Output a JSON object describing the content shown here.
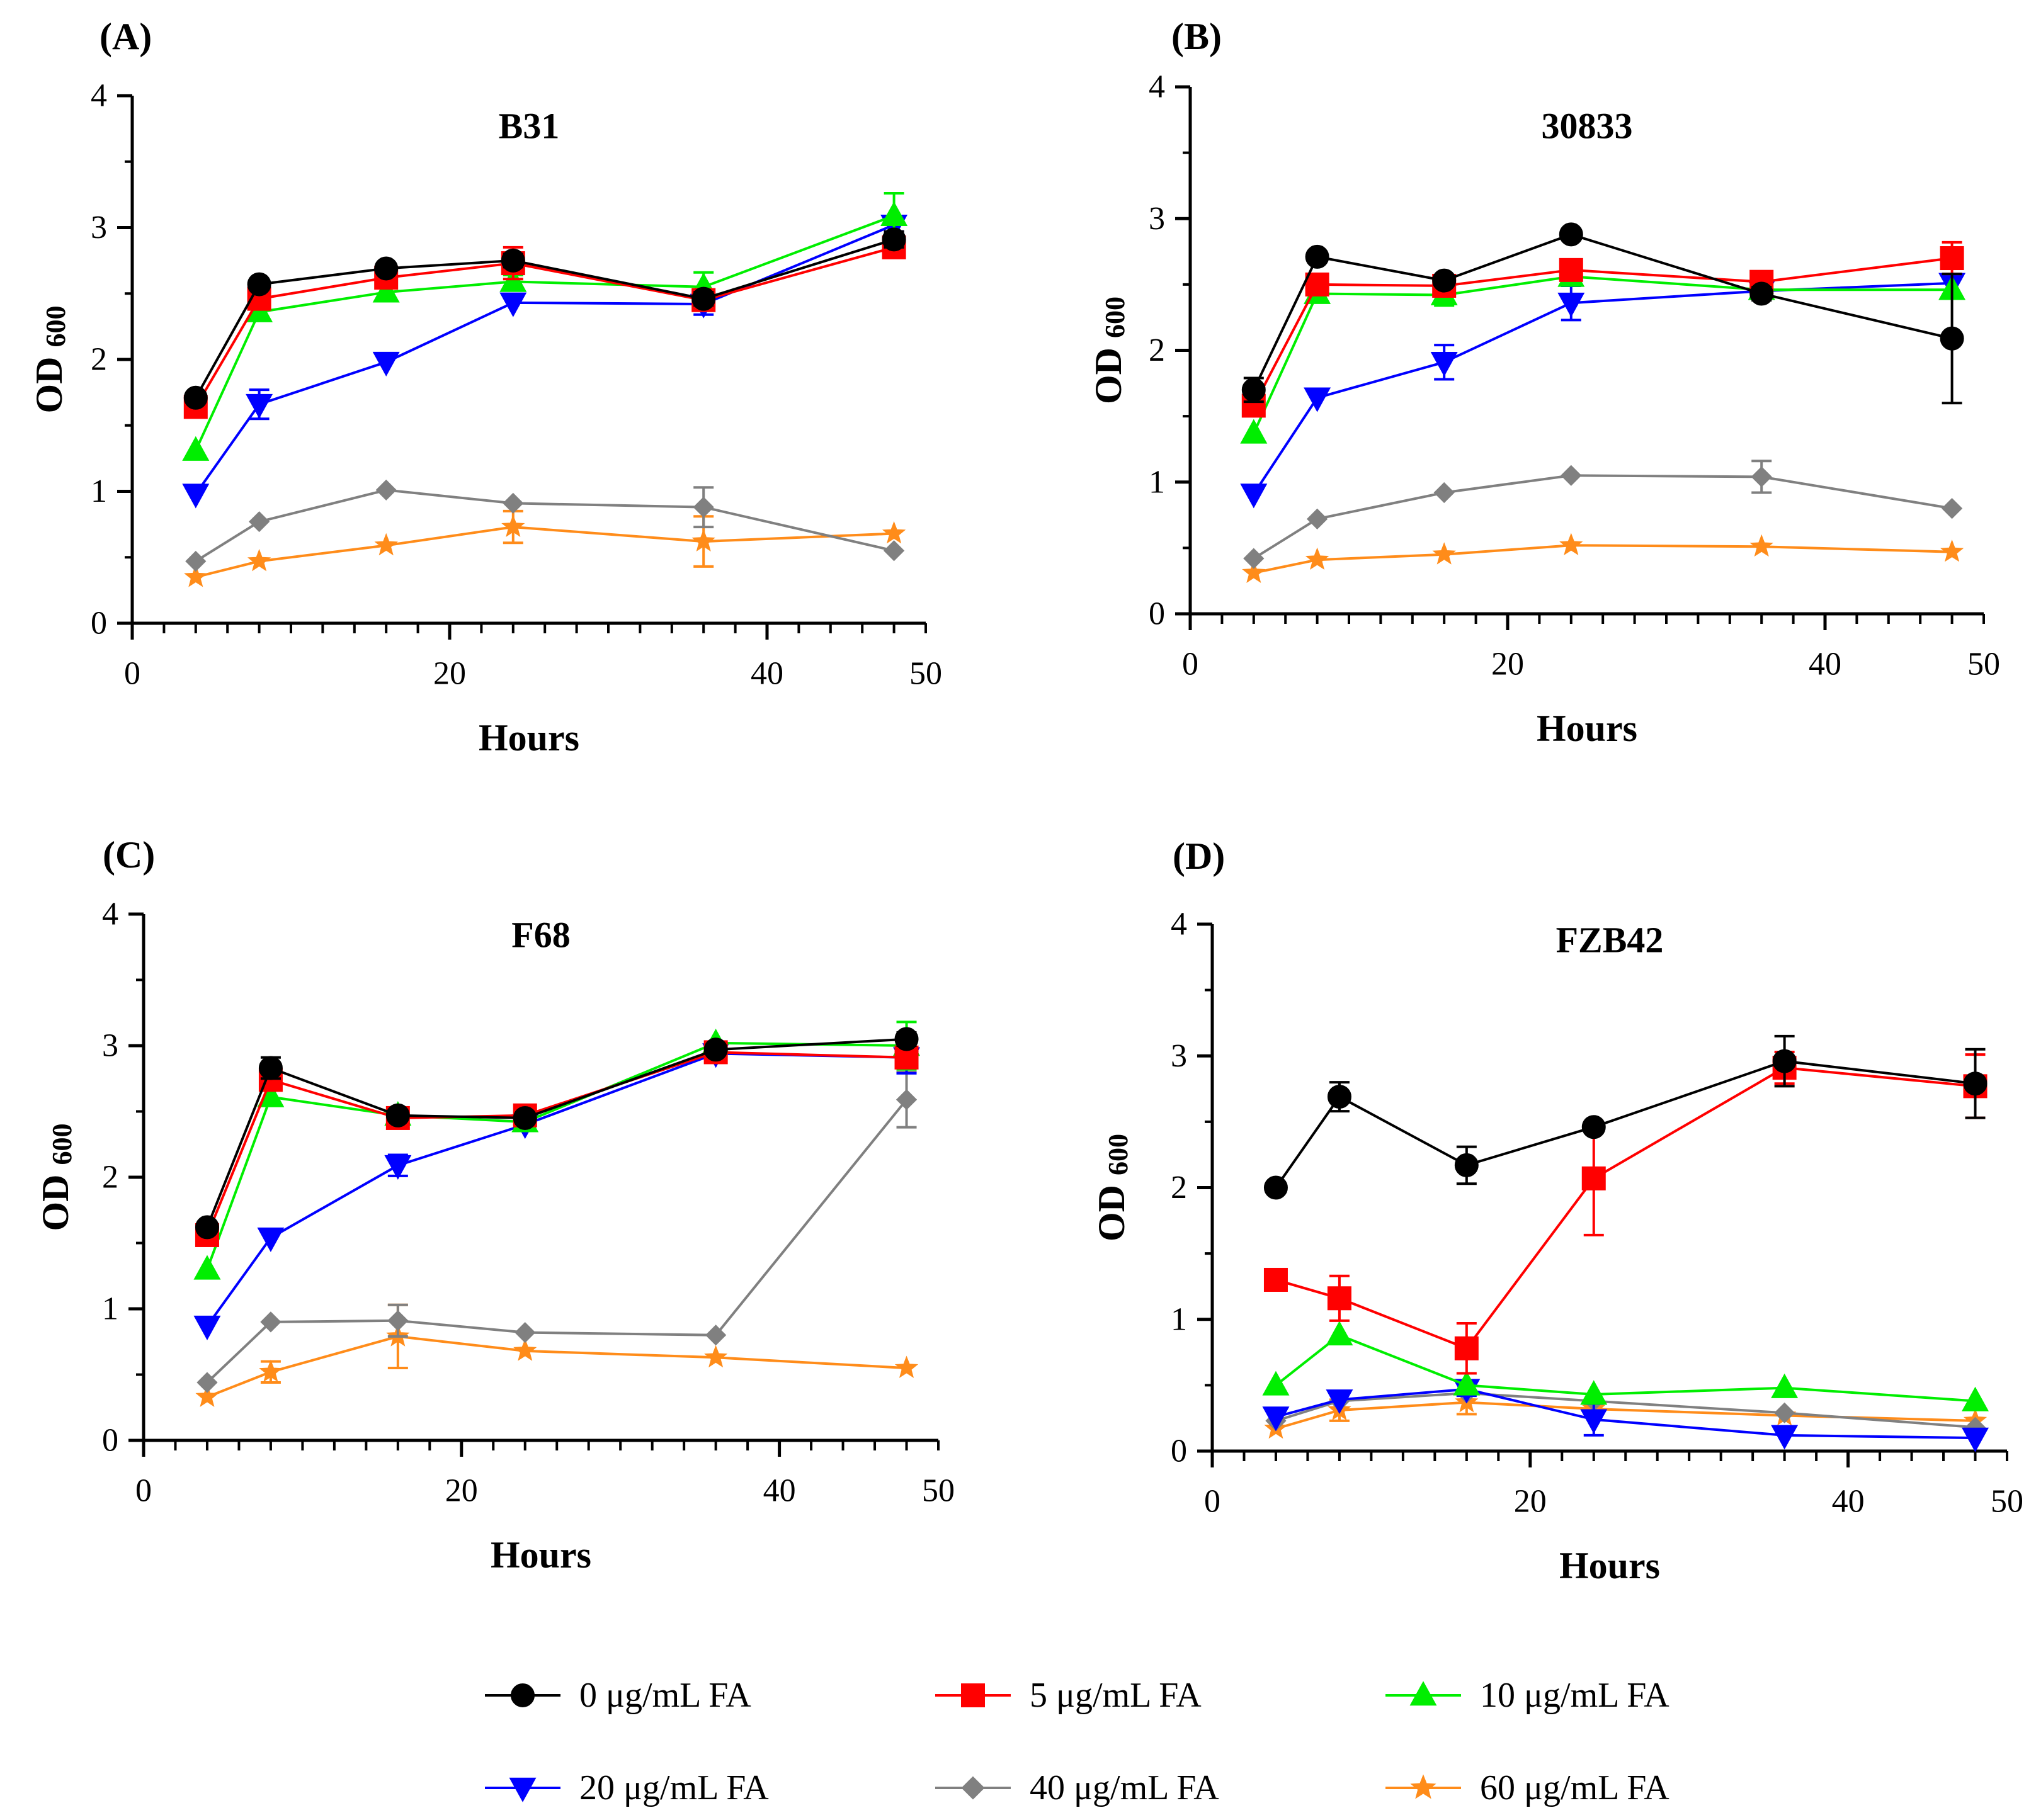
{
  "figure": {
    "legend": [
      {
        "label": "0 μg/mL FA",
        "color": "#000000",
        "marker": "circle"
      },
      {
        "label": "5 μg/mL FA",
        "color": "#ff0000",
        "marker": "square"
      },
      {
        "label": "10 μg/mL FA",
        "color": "#00ee00",
        "marker": "triangle-up"
      },
      {
        "label": "20 μg/mL FA",
        "color": "#0000ff",
        "marker": "triangle-down"
      },
      {
        "label": "40 μg/mL FA",
        "color": "#808080",
        "marker": "diamond"
      },
      {
        "label": "60 μg/mL FA",
        "color": "#ff8c1a",
        "marker": "star"
      }
    ]
  },
  "chart_data": [
    {
      "panel": "(A)",
      "type": "line",
      "title": "B31",
      "xlabel": "Hours",
      "ylabel_main": "OD",
      "ylabel_sub": "600",
      "xlim": [
        0,
        50
      ],
      "ylim": [
        0,
        4
      ],
      "xticks": [
        0,
        20,
        40,
        50
      ],
      "yticks": [
        0,
        1,
        2,
        3,
        4
      ],
      "x": [
        4,
        8,
        16,
        24,
        36,
        48
      ],
      "series": [
        {
          "name": "0 μg/mL FA",
          "values": [
            1.71,
            2.57,
            2.69,
            2.75,
            2.46,
            2.91
          ],
          "errors": [
            0.03,
            0.03,
            0.03,
            0.05,
            0.05,
            0.06
          ]
        },
        {
          "name": "5 μg/mL FA",
          "values": [
            1.64,
            2.46,
            2.62,
            2.73,
            2.45,
            2.85
          ],
          "errors": [
            0.03,
            0.03,
            0.04,
            0.12,
            0.04,
            0.05
          ]
        },
        {
          "name": "10 μg/mL FA",
          "values": [
            1.31,
            2.36,
            2.51,
            2.59,
            2.55,
            3.09
          ],
          "errors": [
            0.03,
            0.04,
            0.04,
            0.05,
            0.11,
            0.17
          ]
        },
        {
          "name": "20 μg/mL FA",
          "values": [
            0.98,
            1.66,
            1.98,
            2.43,
            2.42,
            3.02
          ],
          "errors": [
            0.03,
            0.11,
            0.03,
            0.04,
            0.08,
            0.05
          ]
        },
        {
          "name": "40 μg/mL FA",
          "values": [
            0.47,
            0.77,
            1.01,
            0.91,
            0.88,
            0.55
          ],
          "errors": [
            0.02,
            0.03,
            0.03,
            0.03,
            0.15,
            0.02
          ]
        },
        {
          "name": "60 μg/mL FA",
          "values": [
            0.35,
            0.47,
            0.59,
            0.73,
            0.62,
            0.68
          ],
          "errors": [
            0.02,
            0.02,
            0.03,
            0.12,
            0.19,
            0.03
          ]
        }
      ]
    },
    {
      "panel": "(B)",
      "type": "line",
      "title": "30833",
      "xlabel": "Hours",
      "ylabel_main": "OD",
      "ylabel_sub": "600",
      "xlim": [
        0,
        50
      ],
      "ylim": [
        0,
        4
      ],
      "xticks": [
        0,
        20,
        40,
        50
      ],
      "yticks": [
        0,
        1,
        2,
        3,
        4
      ],
      "x": [
        4,
        8,
        16,
        24,
        36,
        48
      ],
      "series": [
        {
          "name": "0 μg/mL FA",
          "values": [
            1.7,
            2.71,
            2.53,
            2.88,
            2.43,
            2.09
          ],
          "errors": [
            0.09,
            0.03,
            0.04,
            0.03,
            0.05,
            0.49
          ]
        },
        {
          "name": "5 μg/mL FA",
          "values": [
            1.58,
            2.5,
            2.49,
            2.61,
            2.52,
            2.7
          ],
          "errors": [
            0.07,
            0.05,
            0.04,
            0.04,
            0.05,
            0.12
          ]
        },
        {
          "name": "10 μg/mL FA",
          "values": [
            1.37,
            2.43,
            2.42,
            2.56,
            2.46,
            2.46
          ],
          "errors": [
            0.03,
            0.03,
            0.08,
            0.05,
            0.03,
            0.04
          ]
        },
        {
          "name": "20 μg/mL FA",
          "values": [
            0.91,
            1.64,
            1.91,
            2.36,
            2.45,
            2.51
          ],
          "errors": [
            0.03,
            0.04,
            0.13,
            0.13,
            0.04,
            0.04
          ]
        },
        {
          "name": "40 μg/mL FA",
          "values": [
            0.42,
            0.72,
            0.92,
            1.05,
            1.04,
            0.8
          ],
          "errors": [
            0.02,
            0.02,
            0.02,
            0.02,
            0.12,
            0.02
          ]
        },
        {
          "name": "60 μg/mL FA",
          "values": [
            0.31,
            0.41,
            0.45,
            0.52,
            0.51,
            0.47
          ],
          "errors": [
            0.02,
            0.02,
            0.02,
            0.02,
            0.02,
            0.02
          ]
        }
      ]
    },
    {
      "panel": "(C)",
      "type": "line",
      "title": "F68",
      "xlabel": "Hours",
      "ylabel_main": "OD",
      "ylabel_sub": "600",
      "xlim": [
        0,
        50
      ],
      "ylim": [
        0,
        4
      ],
      "xticks": [
        0,
        20,
        40,
        50
      ],
      "yticks": [
        0,
        1,
        2,
        3,
        4
      ],
      "x": [
        4,
        8,
        16,
        24,
        36,
        48
      ],
      "series": [
        {
          "name": "0 μg/mL FA",
          "values": [
            1.62,
            2.83,
            2.47,
            2.45,
            2.97,
            3.05
          ],
          "errors": [
            0.03,
            0.08,
            0.03,
            0.04,
            0.04,
            0.05
          ]
        },
        {
          "name": "5 μg/mL FA",
          "values": [
            1.56,
            2.74,
            2.45,
            2.47,
            2.95,
            2.91
          ],
          "errors": [
            0.03,
            0.05,
            0.03,
            0.04,
            0.03,
            0.06
          ]
        },
        {
          "name": "10 μg/mL FA",
          "values": [
            1.3,
            2.61,
            2.47,
            2.42,
            3.02,
            3.0
          ],
          "errors": [
            0.03,
            0.04,
            0.03,
            0.03,
            0.03,
            0.18
          ]
        },
        {
          "name": "20 μg/mL FA",
          "values": [
            0.87,
            1.54,
            2.09,
            2.4,
            2.94,
            2.91
          ],
          "errors": [
            0.03,
            0.03,
            0.08,
            0.03,
            0.03,
            0.12
          ]
        },
        {
          "name": "40 μg/mL FA",
          "values": [
            0.44,
            0.9,
            0.91,
            0.82,
            0.8,
            2.59
          ],
          "errors": [
            0.02,
            0.03,
            0.12,
            0.03,
            0.03,
            0.21
          ]
        },
        {
          "name": "60 μg/mL FA",
          "values": [
            0.33,
            0.52,
            0.79,
            0.68,
            0.63,
            0.55
          ],
          "errors": [
            0.02,
            0.08,
            0.24,
            0.03,
            0.02,
            0.02
          ]
        }
      ]
    },
    {
      "panel": "(D)",
      "type": "line",
      "title": "FZB42",
      "xlabel": "Hours",
      "ylabel_main": "OD",
      "ylabel_sub": "600",
      "xlim": [
        0,
        50
      ],
      "ylim": [
        0,
        4
      ],
      "xticks": [
        0,
        20,
        40,
        50
      ],
      "yticks": [
        0,
        1,
        2,
        3,
        4
      ],
      "x": [
        4,
        8,
        16,
        24,
        36,
        48
      ],
      "series": [
        {
          "name": "0 μg/mL FA",
          "values": [
            2.0,
            2.69,
            2.17,
            2.46,
            2.96,
            2.79
          ],
          "errors": [
            0.03,
            0.11,
            0.14,
            0.04,
            0.19,
            0.26
          ]
        },
        {
          "name": "5 μg/mL FA",
          "values": [
            1.3,
            1.16,
            0.78,
            2.07,
            2.91,
            2.77
          ],
          "errors": [
            0.03,
            0.17,
            0.19,
            0.43,
            0.12,
            0.24
          ]
        },
        {
          "name": "10 μg/mL FA",
          "values": [
            0.5,
            0.88,
            0.5,
            0.43,
            0.48,
            0.38
          ],
          "errors": [
            0.02,
            0.03,
            0.03,
            0.02,
            0.02,
            0.02
          ]
        },
        {
          "name": "20 μg/mL FA",
          "values": [
            0.26,
            0.39,
            0.47,
            0.24,
            0.12,
            0.1
          ],
          "errors": [
            0.02,
            0.03,
            0.05,
            0.12,
            0.02,
            0.02
          ]
        },
        {
          "name": "40 μg/mL FA",
          "values": [
            0.23,
            0.38,
            0.44,
            0.38,
            0.29,
            0.18
          ],
          "errors": [
            0.02,
            0.02,
            0.03,
            0.02,
            0.03,
            0.02
          ]
        },
        {
          "name": "60 μg/mL FA",
          "values": [
            0.17,
            0.31,
            0.37,
            0.32,
            0.27,
            0.23
          ],
          "errors": [
            0.02,
            0.08,
            0.09,
            0.02,
            0.02,
            0.02
          ]
        }
      ]
    }
  ]
}
